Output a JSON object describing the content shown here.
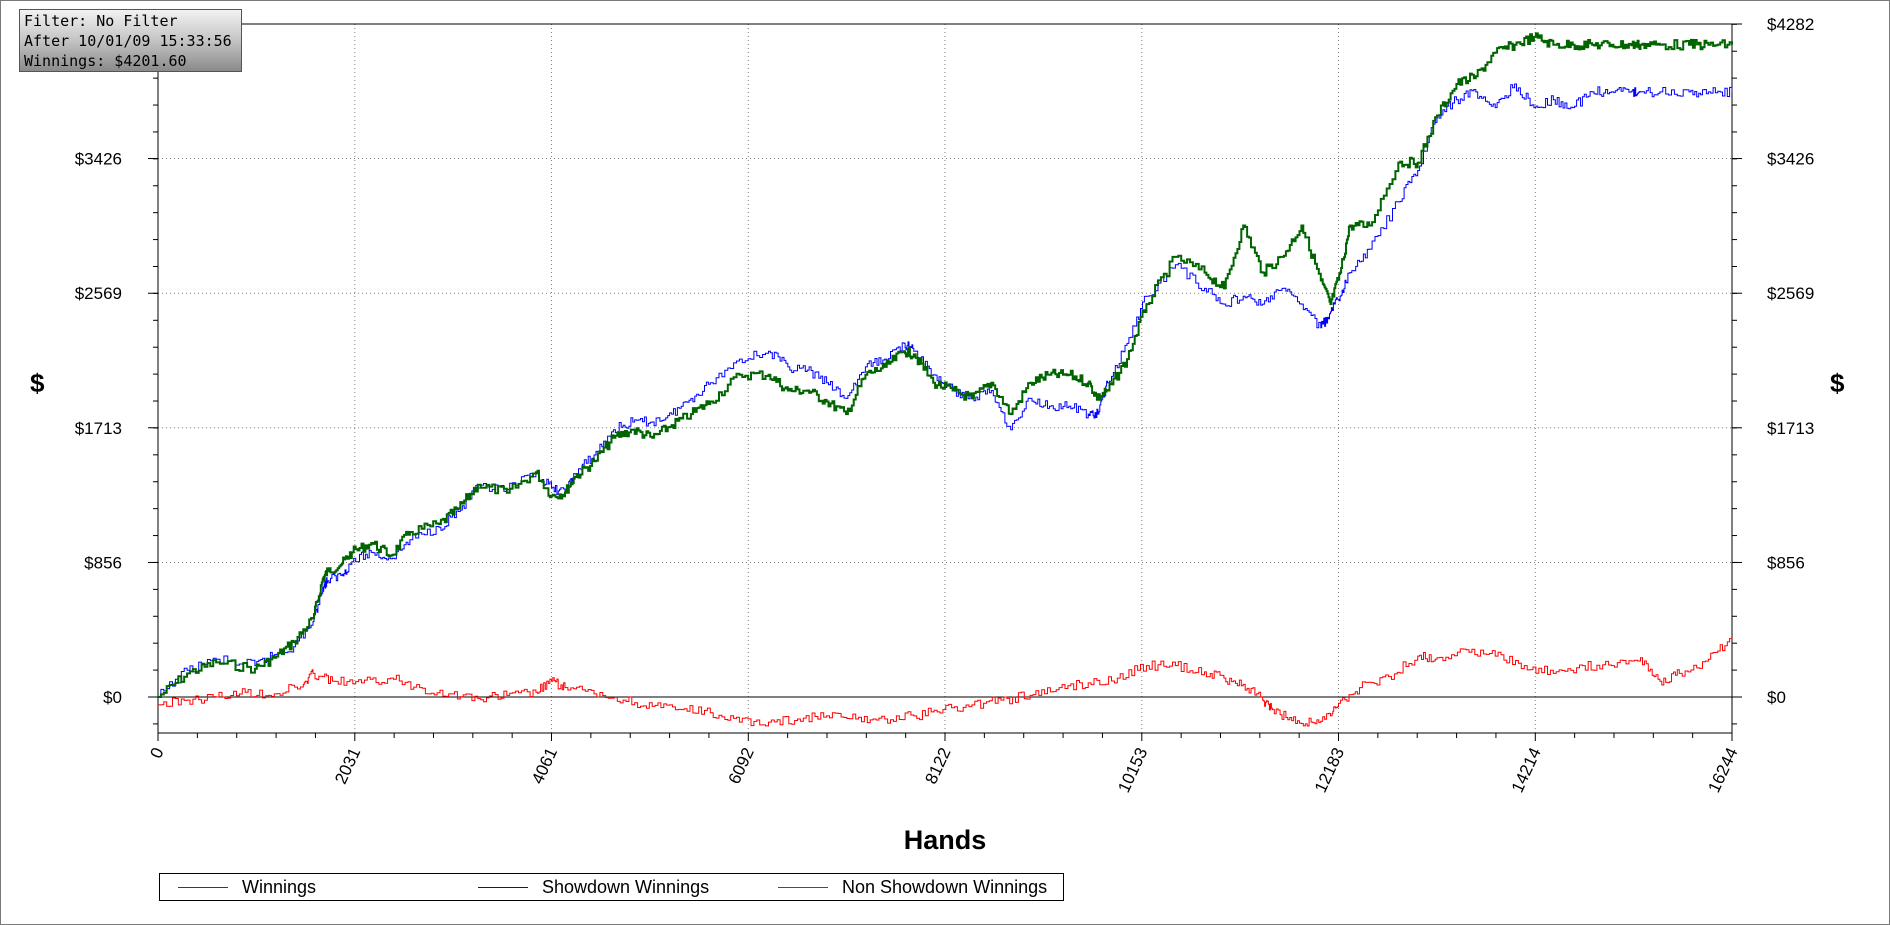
{
  "info_box": {
    "filter": "Filter: No Filter",
    "after": "After 10/01/09 15:33:56",
    "winnings": "Winnings: $4201.60"
  },
  "colors": {
    "winnings": "#006400",
    "showdown": "#0000ff",
    "non_showdown": "#ff0000",
    "grid": "#808080",
    "zero_line": "#000000"
  },
  "chart_data": {
    "type": "line",
    "xlabel": "Hands",
    "ylabel_left": "$",
    "ylabel_right": "$",
    "xlim": [
      0,
      16244
    ],
    "ylim": [
      -350,
      4282
    ],
    "x_ticks": [
      "0",
      "2031",
      "4061",
      "6092",
      "8122",
      "10153",
      "12183",
      "14214",
      "16244"
    ],
    "x_tick_values": [
      0,
      2031,
      4061,
      6092,
      8122,
      10153,
      12183,
      14214,
      16244
    ],
    "y_ticks": [
      "$0",
      "$856",
      "$1713",
      "$2569",
      "$3426",
      "$4282"
    ],
    "y_tick_values": [
      0,
      856,
      1713,
      2569,
      3426,
      4282
    ],
    "grid": true,
    "legend_position": "bottom-left",
    "series": [
      {
        "name": "Winnings",
        "color": "#006400",
        "x": [
          0,
          300,
          600,
          1000,
          1200,
          1400,
          1600,
          1700,
          1750,
          1900,
          2000,
          2200,
          2400,
          2600,
          2900,
          3100,
          3300,
          3600,
          3900,
          4061,
          4200,
          4300,
          4500,
          4700,
          4900,
          5100,
          5300,
          5500,
          5700,
          6000,
          6300,
          6500,
          6700,
          6900,
          7100,
          7300,
          7500,
          7700,
          7800,
          8000,
          8200,
          8400,
          8600,
          8800,
          9000,
          9200,
          9400,
          9600,
          9700,
          9800,
          10000,
          10200,
          10500,
          10800,
          11000,
          11200,
          11400,
          11600,
          11800,
          12000,
          12100,
          12200,
          12300,
          12500,
          12800,
          13000,
          13200,
          13400,
          13600,
          13800,
          14000,
          14200,
          14400,
          14600,
          14800,
          15000,
          15200,
          15300,
          15500,
          15800,
          16000,
          16244
        ],
        "y": [
          0,
          150,
          220,
          180,
          250,
          350,
          500,
          750,
          800,
          850,
          920,
          980,
          900,
          1050,
          1100,
          1200,
          1350,
          1300,
          1430,
          1280,
          1300,
          1400,
          1500,
          1650,
          1700,
          1650,
          1730,
          1800,
          1880,
          2050,
          2050,
          1950,
          1950,
          1880,
          1800,
          2050,
          2100,
          2200,
          2180,
          2000,
          1950,
          1900,
          2000,
          1800,
          2000,
          2050,
          2050,
          2000,
          1900,
          1950,
          2150,
          2500,
          2800,
          2700,
          2600,
          3000,
          2700,
          2800,
          3000,
          2650,
          2500,
          2700,
          3000,
          3000,
          3400,
          3400,
          3700,
          3900,
          3950,
          4100,
          4150,
          4200,
          4150,
          4150,
          4150,
          4150,
          4150,
          4150,
          4150,
          4150,
          4150,
          4150
        ],
        "values_hint": "approximate"
      },
      {
        "name": "Showdown Winnings",
        "color": "#0000ff",
        "x": [
          0,
          300,
          600,
          1000,
          1200,
          1400,
          1600,
          1700,
          1750,
          1900,
          2000,
          2200,
          2400,
          2600,
          2900,
          3100,
          3300,
          3600,
          3900,
          4061,
          4200,
          4300,
          4500,
          4700,
          4900,
          5100,
          5300,
          5500,
          5700,
          6000,
          6300,
          6500,
          6700,
          6900,
          7100,
          7300,
          7500,
          7700,
          7800,
          8000,
          8200,
          8400,
          8600,
          8800,
          9000,
          9200,
          9400,
          9600,
          9700,
          9800,
          10000,
          10200,
          10500,
          10800,
          11000,
          11200,
          11400,
          11600,
          11800,
          12000,
          12100,
          12200,
          12300,
          12500,
          12800,
          13000,
          13200,
          13400,
          13600,
          13800,
          14000,
          14200,
          14400,
          14600,
          14800,
          15000,
          15200,
          15300,
          15500,
          15800,
          16000,
          16244
        ],
        "y": [
          0,
          170,
          240,
          200,
          270,
          320,
          480,
          700,
          740,
          780,
          860,
          920,
          880,
          1000,
          1080,
          1180,
          1330,
          1320,
          1420,
          1330,
          1300,
          1420,
          1540,
          1700,
          1750,
          1750,
          1800,
          1900,
          2000,
          2150,
          2200,
          2100,
          2080,
          2000,
          1900,
          2100,
          2150,
          2250,
          2200,
          2050,
          1950,
          1900,
          1950,
          1700,
          1900,
          1850,
          1850,
          1800,
          1800,
          2000,
          2250,
          2550,
          2750,
          2600,
          2500,
          2550,
          2500,
          2600,
          2500,
          2350,
          2450,
          2550,
          2700,
          2850,
          3150,
          3350,
          3700,
          3800,
          3850,
          3750,
          3900,
          3750,
          3800,
          3750,
          3850,
          3850,
          3850,
          3850,
          3850,
          3850,
          3850,
          3850
        ],
        "values_hint": "approximate"
      },
      {
        "name": "Non Showdown Winnings",
        "color": "#ff0000",
        "x": [
          0,
          300,
          600,
          900,
          1200,
          1500,
          1600,
          1800,
          2100,
          2400,
          2700,
          3000,
          3300,
          3600,
          3900,
          4061,
          4200,
          4500,
          4800,
          5100,
          5400,
          5700,
          6000,
          6300,
          6600,
          6900,
          7200,
          7500,
          7800,
          8100,
          8400,
          8700,
          9000,
          9300,
          9600,
          9900,
          10200,
          10500,
          10800,
          11000,
          11200,
          11400,
          11500,
          11700,
          11900,
          12100,
          12183,
          12400,
          12700,
          13000,
          13200,
          13500,
          13800,
          14100,
          14400,
          14700,
          15000,
          15300,
          15500,
          15700,
          16000,
          16244
        ],
        "y": [
          -50,
          -20,
          0,
          30,
          20,
          80,
          150,
          100,
          90,
          120,
          60,
          20,
          -10,
          10,
          30,
          100,
          60,
          20,
          -20,
          -60,
          -80,
          -100,
          -160,
          -160,
          -140,
          -120,
          -140,
          -140,
          -120,
          -80,
          -50,
          -20,
          10,
          60,
          90,
          120,
          200,
          200,
          160,
          120,
          80,
          -20,
          -80,
          -150,
          -160,
          -120,
          -40,
          60,
          130,
          260,
          250,
          300,
          260,
          200,
          150,
          200,
          200,
          250,
          100,
          150,
          240,
          370
        ],
        "values_hint": "approximate"
      }
    ]
  },
  "legend": {
    "winnings": "Winnings",
    "showdown": "Showdown Winnings",
    "non_showdown": "Non Showdown Winnings"
  }
}
